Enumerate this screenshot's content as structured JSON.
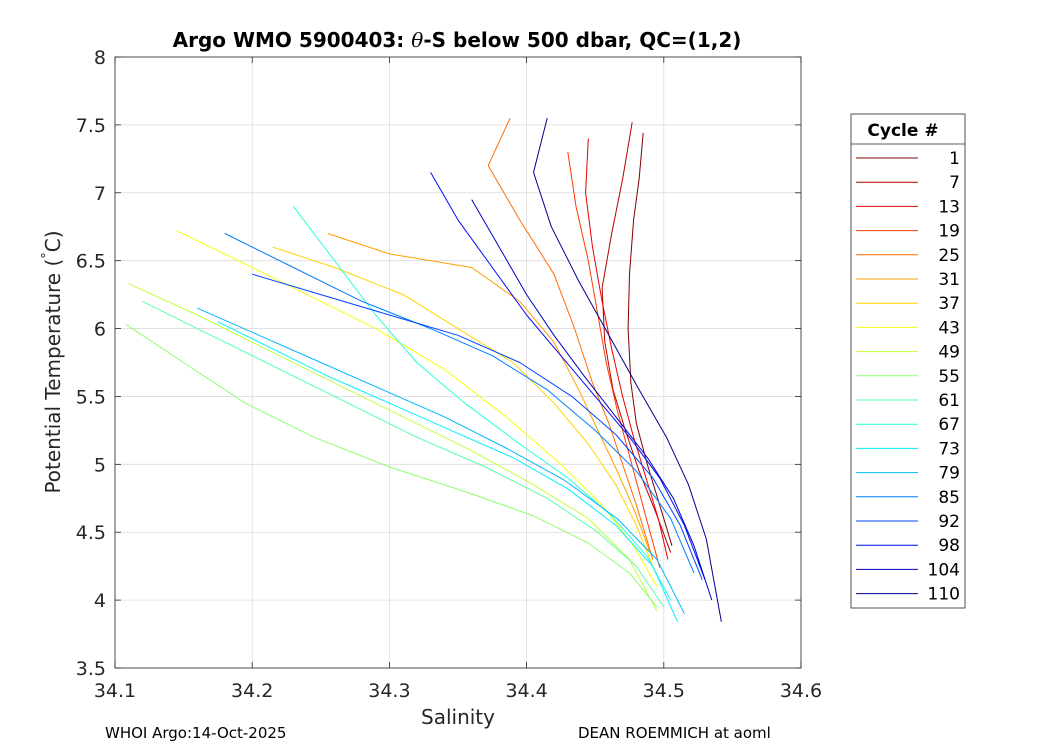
{
  "chart_data": {
    "type": "line",
    "title_prefix": "Argo WMO 5900403: ",
    "title_symbol": "θ",
    "title_suffix": "-S below 500 dbar,  QC=(1,2)",
    "xlabel": "Salinity",
    "ylabel_main": "Potential Temperature (",
    "ylabel_degree": "°",
    "ylabel_end": "C)",
    "xlim": [
      34.1,
      34.6
    ],
    "ylim": [
      3.5,
      8
    ],
    "x_ticks": [
      "34.1",
      "34.2",
      "34.3",
      "34.4",
      "34.5",
      "34.6"
    ],
    "y_ticks": [
      "3.5",
      "4",
      "4.5",
      "5",
      "5.5",
      "6",
      "6.5",
      "7",
      "7.5",
      "8"
    ],
    "grid": true,
    "legend_title": "Cycle #",
    "legend_placement": "outside-right",
    "legend": [
      {
        "label": "1",
        "color": "#800000"
      },
      {
        "label": "7",
        "color": "#b50000"
      },
      {
        "label": "13",
        "color": "#e80000"
      },
      {
        "label": "19",
        "color": "#ff3a00"
      },
      {
        "label": "25",
        "color": "#ff6d00"
      },
      {
        "label": "31",
        "color": "#ffa000"
      },
      {
        "label": "37",
        "color": "#ffd500"
      },
      {
        "label": "43",
        "color": "#f6ff08"
      },
      {
        "label": "49",
        "color": "#c2ff3d"
      },
      {
        "label": "55",
        "color": "#8fff70"
      },
      {
        "label": "61",
        "color": "#5affa5"
      },
      {
        "label": "67",
        "color": "#27ffd8"
      },
      {
        "label": "73",
        "color": "#00f0ff"
      },
      {
        "label": "79",
        "color": "#00b7ff"
      },
      {
        "label": "85",
        "color": "#0080ff"
      },
      {
        "label": "92",
        "color": "#0045ff"
      },
      {
        "label": "98",
        "color": "#000dff"
      },
      {
        "label": "104",
        "color": "#0000c7"
      },
      {
        "label": "110",
        "color": "#00008f"
      }
    ],
    "series": [
      {
        "name": "1",
        "x": [
          34.485,
          34.482,
          34.478,
          34.475,
          34.474,
          34.476,
          34.48,
          34.488,
          34.497,
          34.506
        ],
        "y": [
          7.44,
          7.1,
          6.8,
          6.4,
          6.0,
          5.6,
          5.3,
          5.0,
          4.7,
          4.4
        ]
      },
      {
        "name": "7",
        "x": [
          34.477,
          34.47,
          34.462,
          34.455,
          34.457,
          34.463,
          34.472,
          34.482,
          34.494,
          34.505
        ],
        "y": [
          7.52,
          7.1,
          6.7,
          6.3,
          5.9,
          5.55,
          5.25,
          4.95,
          4.65,
          4.35
        ]
      },
      {
        "name": "13",
        "x": [
          34.445,
          34.443,
          34.448,
          34.455,
          34.462,
          34.47,
          34.478,
          34.487,
          34.496,
          34.503
        ],
        "y": [
          7.4,
          7.0,
          6.6,
          6.2,
          5.85,
          5.5,
          5.2,
          4.9,
          4.6,
          4.3
        ]
      },
      {
        "name": "19",
        "x": [
          34.43,
          34.436,
          34.445,
          34.452,
          34.458,
          34.466,
          34.474,
          34.482,
          34.49,
          34.497
        ],
        "y": [
          7.3,
          6.9,
          6.5,
          6.1,
          5.75,
          5.4,
          5.1,
          4.8,
          4.5,
          4.24
        ]
      },
      {
        "name": "25",
        "x": [
          34.388,
          34.372,
          34.395,
          34.42,
          34.435,
          34.448,
          34.46,
          34.47,
          34.48,
          34.492
        ],
        "y": [
          7.55,
          7.2,
          6.8,
          6.4,
          6.0,
          5.6,
          5.3,
          5.0,
          4.7,
          4.3
        ]
      },
      {
        "name": "31",
        "x": [
          34.255,
          34.3,
          34.36,
          34.395,
          34.42,
          34.438,
          34.452,
          34.466,
          34.479,
          34.49
        ],
        "y": [
          6.7,
          6.55,
          6.45,
          6.2,
          5.9,
          5.55,
          5.25,
          4.95,
          4.65,
          4.35
        ]
      },
      {
        "name": "37",
        "x": [
          34.215,
          34.26,
          34.31,
          34.35,
          34.39,
          34.42,
          34.445,
          34.465,
          34.48,
          34.492
        ],
        "y": [
          6.6,
          6.45,
          6.25,
          6.0,
          5.75,
          5.45,
          5.15,
          4.85,
          4.55,
          4.25
        ]
      },
      {
        "name": "43",
        "x": [
          34.145,
          34.19,
          34.24,
          34.29,
          34.34,
          34.385,
          34.425,
          34.455,
          34.478,
          34.495
        ],
        "y": [
          6.72,
          6.5,
          6.25,
          6.0,
          5.7,
          5.35,
          5.0,
          4.7,
          4.4,
          4.1
        ]
      },
      {
        "name": "49",
        "x": [
          34.11,
          34.16,
          34.21,
          34.26,
          34.31,
          34.36,
          34.405,
          34.445,
          34.475,
          34.495
        ],
        "y": [
          6.33,
          6.1,
          5.85,
          5.6,
          5.35,
          5.1,
          4.85,
          4.6,
          4.3,
          3.92
        ]
      },
      {
        "name": "55",
        "x": [
          34.108,
          34.15,
          34.195,
          34.245,
          34.3,
          34.355,
          34.405,
          34.445,
          34.475,
          34.495
        ],
        "y": [
          6.03,
          5.75,
          5.45,
          5.2,
          4.98,
          4.8,
          4.62,
          4.42,
          4.2,
          3.95
        ]
      },
      {
        "name": "61",
        "x": [
          34.12,
          34.17,
          34.22,
          34.27,
          34.32,
          34.37,
          34.415,
          34.452,
          34.48,
          34.5
        ],
        "y": [
          6.2,
          5.95,
          5.7,
          5.45,
          5.2,
          4.98,
          4.75,
          4.5,
          4.25,
          3.95
        ]
      },
      {
        "name": "67",
        "x": [
          34.23,
          34.26,
          34.29,
          34.32,
          34.355,
          34.395,
          34.43,
          34.462,
          34.488,
          34.505
        ],
        "y": [
          6.9,
          6.5,
          6.1,
          5.75,
          5.45,
          5.15,
          4.9,
          4.62,
          4.32,
          4.0
        ]
      },
      {
        "name": "73",
        "x": [
          34.175,
          34.215,
          34.255,
          34.3,
          34.345,
          34.39,
          34.43,
          34.465,
          34.492,
          34.51
        ],
        "y": [
          6.05,
          5.85,
          5.65,
          5.45,
          5.25,
          5.05,
          4.82,
          4.55,
          4.25,
          3.84
        ]
      },
      {
        "name": "79",
        "x": [
          34.16,
          34.205,
          34.25,
          34.295,
          34.34,
          34.385,
          34.428,
          34.466,
          34.495,
          34.515
        ],
        "y": [
          6.15,
          5.95,
          5.75,
          5.55,
          5.35,
          5.12,
          4.88,
          4.6,
          4.3,
          3.9
        ]
      },
      {
        "name": "85",
        "x": [
          34.18,
          34.23,
          34.28,
          34.33,
          34.375,
          34.415,
          34.45,
          34.48,
          34.505,
          34.522
        ],
        "y": [
          6.7,
          6.45,
          6.2,
          6.0,
          5.8,
          5.55,
          5.25,
          4.95,
          4.6,
          4.2
        ]
      },
      {
        "name": "92",
        "x": [
          34.2,
          34.25,
          34.3,
          34.35,
          34.395,
          34.433,
          34.465,
          34.492,
          34.512,
          34.528
        ],
        "y": [
          6.4,
          6.25,
          6.1,
          5.95,
          5.75,
          5.5,
          5.22,
          4.9,
          4.55,
          4.15
        ]
      },
      {
        "name": "98",
        "x": [
          34.33,
          34.35,
          34.375,
          34.4,
          34.425,
          34.45,
          34.475,
          34.497,
          34.515,
          34.53
        ],
        "y": [
          7.15,
          6.8,
          6.45,
          6.1,
          5.8,
          5.5,
          5.2,
          4.9,
          4.55,
          4.15
        ]
      },
      {
        "name": "104",
        "x": [
          34.36,
          34.38,
          34.4,
          34.42,
          34.442,
          34.465,
          34.488,
          34.507,
          34.522,
          34.535
        ],
        "y": [
          6.95,
          6.6,
          6.25,
          5.95,
          5.65,
          5.35,
          5.05,
          4.75,
          4.4,
          4.0
        ]
      },
      {
        "name": "110",
        "x": [
          34.415,
          34.405,
          34.418,
          34.438,
          34.46,
          34.482,
          34.502,
          34.518,
          34.531,
          34.542
        ],
        "y": [
          7.55,
          7.15,
          6.75,
          6.35,
          5.95,
          5.55,
          5.2,
          4.85,
          4.45,
          3.84
        ]
      }
    ]
  },
  "footer": {
    "left": "WHOI Argo:14-Oct-2025",
    "right": "DEAN ROEMMICH at aoml"
  }
}
